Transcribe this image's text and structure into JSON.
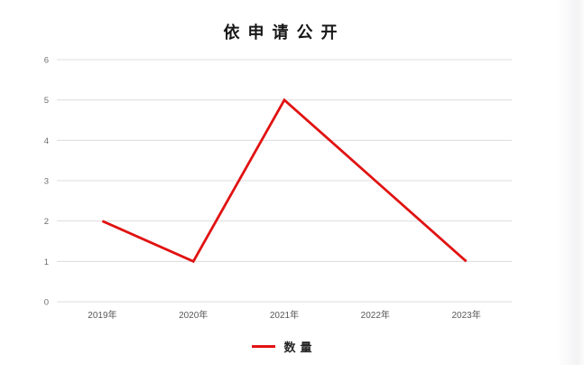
{
  "chart_data": {
    "type": "line",
    "title": "依申请公开",
    "categories": [
      "2019年",
      "2020年",
      "2021年",
      "2022年",
      "2023年"
    ],
    "series": [
      {
        "name": "数量",
        "values": [
          2,
          1,
          5,
          3,
          1
        ],
        "color": "#e11212"
      }
    ],
    "xlabel": "",
    "ylabel": "",
    "ylim": [
      0,
      6
    ],
    "ytick_step": 1,
    "yticks": [
      "0",
      "1",
      "2",
      "3",
      "4",
      "5",
      "6"
    ],
    "grid": "horizontal-only",
    "legend_position": "bottom-center",
    "markers": "none",
    "colors": {
      "line": "#e11212",
      "gridline": "#dcdcdc",
      "tick_label": "#6e6e6e",
      "title": "#171717",
      "background": "#ffffff"
    }
  }
}
